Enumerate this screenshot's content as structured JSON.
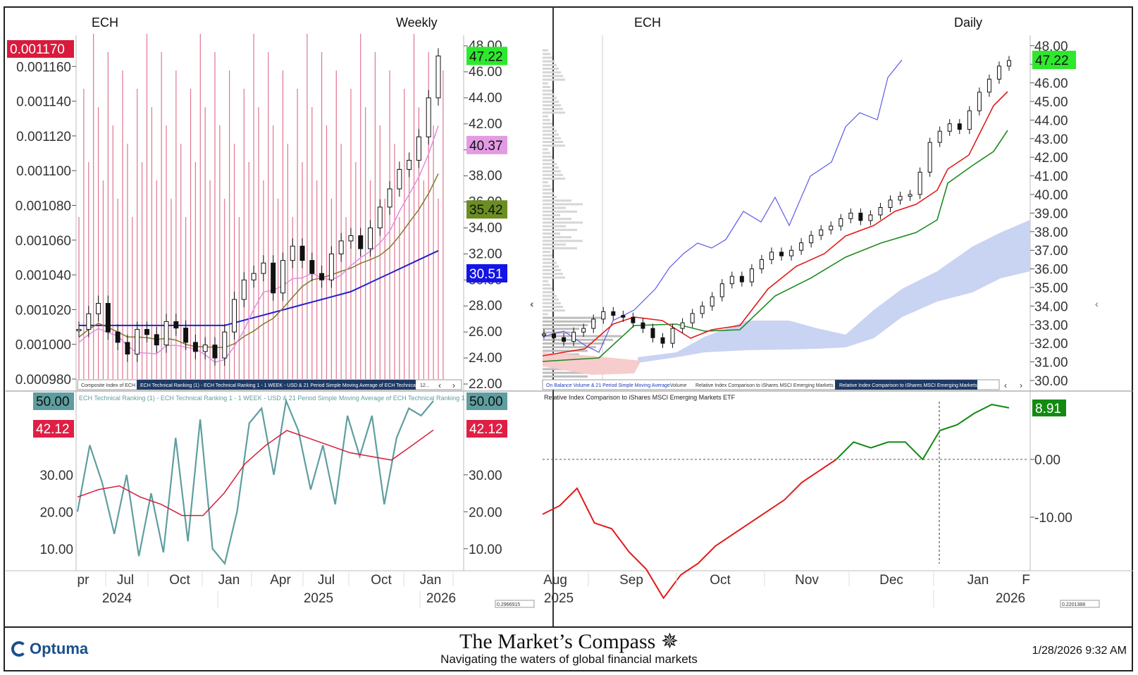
{
  "left": {
    "symbol": "ECH",
    "period": "Weekly",
    "ratio_axis": {
      "ticks": [
        "0.000980",
        "0.001000",
        "0.001020",
        "0.001040",
        "0.001060",
        "0.001080",
        "0.001100",
        "0.001120",
        "0.001140",
        "0.001160"
      ],
      "badge": "0.001170",
      "badge_color": "#d81b3c"
    },
    "price_axis": {
      "ticks": [
        "22.00",
        "24.00",
        "26.00",
        "28.00",
        "30.00",
        "32.00",
        "34.00",
        "36.00",
        "38.00",
        "40.00",
        "42.00",
        "44.00",
        "46.00",
        "48.00"
      ],
      "badges": [
        {
          "text": "47.22",
          "color": "#2ee82e"
        },
        {
          "text": "40.37",
          "color": "#e39be3"
        },
        {
          "text": "35.42",
          "color": "#6b8e23"
        },
        {
          "text": "30.51",
          "color": "#1414e6"
        }
      ]
    },
    "tabs": [
      "Composite Index of ECH",
      "ECH Technical Ranking (1) - ECH Technical Ranking  1 - 1 WEEK - USD & 21 Period Simple Moving Average of ECH Technical Ranking  1",
      "12..."
    ],
    "lower": {
      "legend_a": "ECH Technical Ranking (1) - ECH Technical Ranking  1 - 1 WEEK - USD & 21 Period Simple Moving Average of ECH Technical Ranking  1",
      "ticks": [
        "10.00",
        "20.00",
        "30.00"
      ],
      "badges": [
        {
          "text": "50.00",
          "color": "#5f9ea0"
        },
        {
          "text": "42.12",
          "color": "#e01f45"
        }
      ]
    },
    "months": [
      "pr",
      "Jul",
      "Oct",
      "Jan",
      "Apr",
      "Jul",
      "Oct",
      "Jan"
    ],
    "years": [
      "2024",
      "2025",
      "2026"
    ],
    "scale_box": "0.2966915"
  },
  "right": {
    "symbol": "ECH",
    "period": "Daily",
    "price_axis": {
      "ticks": [
        "30.00",
        "31.00",
        "32.00",
        "33.00",
        "34.00",
        "35.00",
        "36.00",
        "37.00",
        "38.00",
        "39.00",
        "40.00",
        "41.00",
        "42.00",
        "43.00",
        "44.00",
        "45.00",
        "46.00",
        "47.00",
        "48.00"
      ],
      "badge": "47.22",
      "badge_color": "#2ee82e"
    },
    "tabs": [
      "On Balance Volume & 21 Period Simple Moving Average",
      "Volume",
      "Relative Index Comparison to iShares MSCI Emerging Markets ETF",
      "Relative Index Comparison to iShares MSCI Emerging Markets ETF"
    ],
    "lower": {
      "legend": "Relative Index Comparison to iShares MSCI Emerging Markets ETF",
      "ticks": [
        "0.00",
        "-10.00"
      ],
      "badge": "8.91",
      "badge_color": "#128a12"
    },
    "months": [
      "Aug",
      "Sep",
      "Oct",
      "Nov",
      "Dec",
      "Jan",
      "F"
    ],
    "years": [
      "2025",
      "2026"
    ],
    "scale_box": "0.2201388"
  },
  "footer": {
    "logo": "Optuma",
    "title": "The Market’s Compass",
    "subtitle": "Navigating the waters of global financial markets",
    "timestamp": "1/28/2026 9:32 AM"
  },
  "chart_data": [
    {
      "type": "line",
      "title": "ECH Weekly",
      "series": [
        {
          "name": "ECH",
          "values": [
            26.2,
            27.4,
            28.2,
            26.0,
            25.2,
            24.3,
            26.2,
            25.8,
            25.0,
            26.8,
            26.3,
            25.2,
            24.5,
            25.0,
            24.0,
            26.0,
            28.5,
            30.0,
            30.5,
            31.3,
            29.0,
            31.5,
            32.6,
            31.5,
            30.5,
            30.0,
            32.0,
            33.0,
            33.4,
            32.4,
            34.0,
            35.6,
            37.0,
            38.5,
            39.2,
            41.0,
            44.0,
            47.22
          ]
        }
      ]
    },
    {
      "type": "line",
      "title": "ECH Technical Ranking",
      "series": [
        {
          "name": "ECH Technical Ranking  1",
          "values": [
            20,
            38,
            28,
            14,
            30,
            8,
            25,
            9,
            40,
            12,
            45,
            10,
            6,
            20,
            44,
            48,
            30,
            50,
            42,
            26,
            38,
            22,
            46,
            35,
            46,
            22,
            40,
            48,
            46,
            50
          ]
        },
        {
          "name": "21 Period Simple Moving Average",
          "values": [
            24,
            26,
            27,
            24,
            22,
            19,
            19,
            25,
            33,
            38,
            42,
            40,
            38,
            36,
            35,
            34,
            38,
            42.12
          ]
        }
      ]
    },
    {
      "type": "line",
      "title": "Relative Index Comparison to iShares MSCI Emerging Markets ETF",
      "series": [
        {
          "name": "Relative Index",
          "values": [
            -9.5,
            -8,
            -5,
            -11,
            -12,
            -16,
            -19,
            -24,
            -20,
            -18,
            -15,
            -13,
            -11,
            -9,
            -7,
            -4,
            -2,
            0,
            3,
            2,
            3,
            3,
            0,
            5,
            6,
            8,
            9.5,
            8.91
          ]
        }
      ]
    }
  ]
}
